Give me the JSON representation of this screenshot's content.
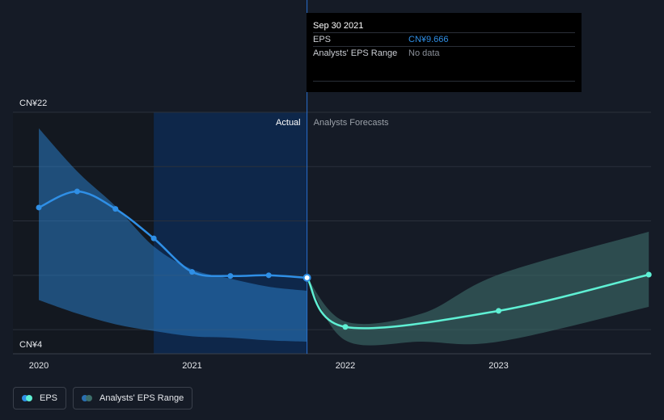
{
  "colors": {
    "background": "#151b26",
    "actual_line": "#2f8fe6",
    "actual_band": "#2a7bc4",
    "forecast_line": "#5ff0d4",
    "forecast_band": "#3d6e6a",
    "grid": "#2a303b",
    "highlight": "#0e2a52"
  },
  "tooltip": {
    "date": "Sep 30 2021",
    "eps_label": "EPS",
    "eps_value": "CN¥9.666",
    "range_label": "Analysts' EPS Range",
    "range_value": "No data"
  },
  "chart_data": {
    "type": "line",
    "title": "",
    "ylim": [
      4,
      22
    ],
    "xlim": [
      2020.0,
      2023.98
    ],
    "y_ticks": [
      {
        "value": 22,
        "label": "CN¥22"
      },
      {
        "value": 4,
        "label": "CN¥4"
      }
    ],
    "x_ticks": [
      {
        "value": 2020,
        "label": "2020"
      },
      {
        "value": 2021,
        "label": "2021"
      },
      {
        "value": 2022,
        "label": "2022"
      },
      {
        "value": 2023,
        "label": "2023"
      }
    ],
    "actual_label": "Actual",
    "forecast_label": "Analysts Forecasts",
    "divider_x": 2021.75,
    "highlight_start": 2020.75,
    "series": [
      {
        "name": "EPS",
        "kind": "actual",
        "points": [
          [
            2020.0,
            14.9
          ],
          [
            2020.25,
            16.1
          ],
          [
            2020.5,
            14.8
          ],
          [
            2020.75,
            12.6
          ],
          [
            2021.0,
            10.1
          ],
          [
            2021.25,
            9.8
          ],
          [
            2021.5,
            9.85
          ],
          [
            2021.75,
            9.666
          ]
        ]
      },
      {
        "name": "EPS Forecast",
        "kind": "forecast",
        "points": [
          [
            2021.75,
            9.666
          ],
          [
            2022.0,
            6.0
          ],
          [
            2023.0,
            7.2
          ],
          [
            2023.98,
            9.9
          ]
        ]
      }
    ],
    "ranges": [
      {
        "name": "Analysts' EPS Range",
        "kind": "past",
        "upper": [
          [
            2020.0,
            20.8
          ],
          [
            2020.25,
            17.6
          ],
          [
            2020.5,
            15.0
          ],
          [
            2020.75,
            12.0
          ],
          [
            2021.0,
            10.3
          ],
          [
            2021.25,
            9.6
          ],
          [
            2021.5,
            9.0
          ],
          [
            2021.75,
            8.7
          ]
        ],
        "lower": [
          [
            2020.0,
            8.0
          ],
          [
            2020.25,
            7.0
          ],
          [
            2020.5,
            6.2
          ],
          [
            2020.75,
            5.7
          ],
          [
            2021.0,
            5.3
          ],
          [
            2021.25,
            5.2
          ],
          [
            2021.5,
            5.0
          ],
          [
            2021.75,
            4.9
          ]
        ]
      },
      {
        "name": "Analysts' EPS Range",
        "kind": "future",
        "upper": [
          [
            2021.75,
            9.666
          ],
          [
            2022.0,
            6.4
          ],
          [
            2022.5,
            7.0
          ],
          [
            2023.0,
            9.9
          ],
          [
            2023.98,
            13.1
          ]
        ],
        "lower": [
          [
            2021.75,
            9.666
          ],
          [
            2022.0,
            5.0
          ],
          [
            2022.5,
            4.9
          ],
          [
            2023.0,
            4.9
          ],
          [
            2023.98,
            7.5
          ]
        ]
      }
    ]
  },
  "legend": {
    "eps_label": "EPS",
    "range_label": "Analysts' EPS Range"
  }
}
